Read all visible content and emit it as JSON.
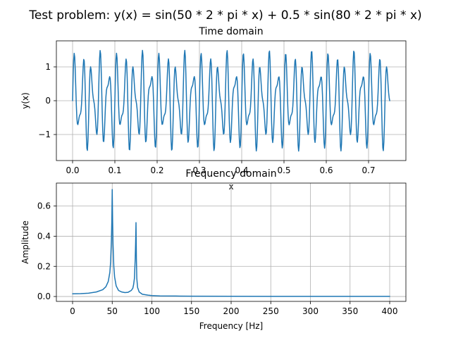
{
  "figure": {
    "suptitle": "Test problem: y(x) = sin(50 * 2 * pi * x) + 0.5 * sin(80 * 2 * pi * x)"
  },
  "colors": {
    "line": "#1f77b4",
    "grid": "#b0b0b0",
    "background": "#ffffff"
  },
  "chart_data": [
    {
      "type": "line",
      "title": "Time domain",
      "xlabel": "x",
      "ylabel": "y(x)",
      "xlim": [
        0,
        0.75
      ],
      "ylim": [
        -1.5,
        1.5
      ],
      "xticks": [
        0.0,
        0.1,
        0.2,
        0.3,
        0.4,
        0.5,
        0.6,
        0.7
      ],
      "xtick_labels": [
        "0.0",
        "0.1",
        "0.2",
        "0.3",
        "0.4",
        "0.5",
        "0.6",
        "0.7"
      ],
      "yticks": [
        -1,
        0,
        1
      ],
      "ytick_labels": [
        "−1",
        "0",
        "1"
      ],
      "grid": true,
      "series": [
        {
          "function": "sin(50*2*pi*x) + 0.5*sin(80*2*pi*x)",
          "x_start": 0,
          "x_end": 0.75,
          "n_samples": 600
        }
      ]
    },
    {
      "type": "line",
      "title": "Frequency domain",
      "xlabel": "Frequency [Hz]",
      "ylabel": "Amplitude",
      "xlim": [
        0,
        400
      ],
      "ylim": [
        0,
        0.72
      ],
      "xticks": [
        0,
        50,
        100,
        150,
        200,
        250,
        300,
        350,
        400
      ],
      "xtick_labels": [
        "0",
        "50",
        "100",
        "150",
        "200",
        "250",
        "300",
        "350",
        "400"
      ],
      "yticks": [
        0.0,
        0.2,
        0.4,
        0.6
      ],
      "ytick_labels": [
        "0.0",
        "0.2",
        "0.4",
        "0.6"
      ],
      "grid": true,
      "series": [
        {
          "x": [
            0,
            10,
            20,
            30,
            38,
            42,
            45,
            47,
            48,
            49,
            49.5,
            50,
            50.5,
            51,
            52,
            53,
            55,
            58,
            62,
            66,
            70,
            74,
            76,
            77,
            78,
            79,
            79.5,
            80,
            80.5,
            81,
            82,
            84,
            88,
            95,
            100,
            110,
            130,
            150,
            200,
            250,
            300,
            350,
            400
          ],
          "y": [
            0.018,
            0.019,
            0.022,
            0.03,
            0.045,
            0.065,
            0.1,
            0.16,
            0.23,
            0.38,
            0.5,
            0.71,
            0.5,
            0.35,
            0.2,
            0.13,
            0.07,
            0.04,
            0.03,
            0.026,
            0.028,
            0.04,
            0.055,
            0.08,
            0.12,
            0.25,
            0.35,
            0.49,
            0.25,
            0.12,
            0.06,
            0.03,
            0.015,
            0.009,
            0.006,
            0.004,
            0.003,
            0.002,
            0.0015,
            0.001,
            0.001,
            0.001,
            0.001
          ]
        }
      ]
    }
  ]
}
